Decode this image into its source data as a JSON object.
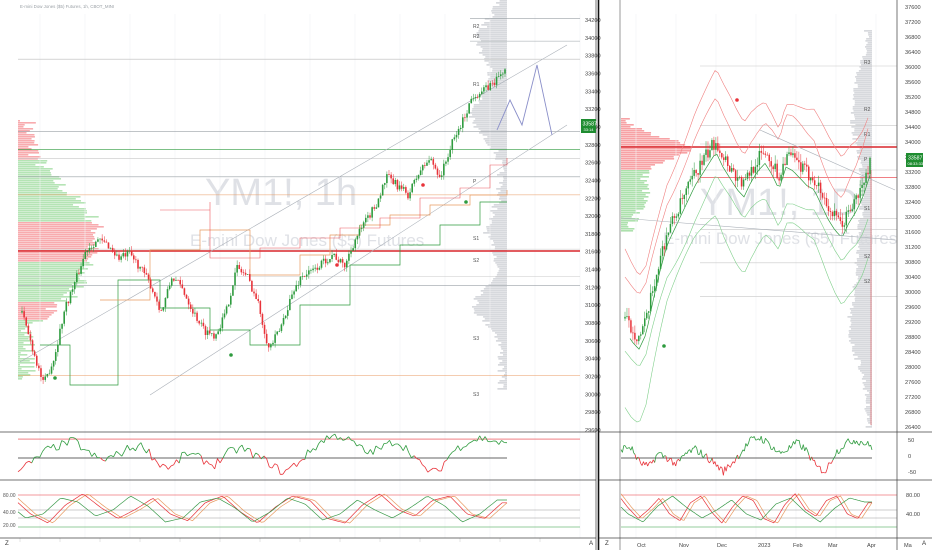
{
  "layout_left": {
    "header": "E-mini Dow Jones ($5) Futures, 1h, CBOT_MINI",
    "watermark": "YM1!, 1h",
    "subtitle": "E-mini Dow Jones ($5) Futures",
    "price_tag": "33587",
    "price_tag_time": "33:14",
    "price_axis": [
      "34200",
      "34000",
      "33800",
      "33600",
      "33400",
      "33200",
      "33000",
      "32800",
      "32600",
      "32400",
      "32200",
      "32000",
      "31800",
      "31600",
      "31400",
      "31200",
      "31000",
      "30800",
      "30600",
      "30400",
      "30200",
      "30000",
      "29800",
      "29600"
    ],
    "level_labels": [
      "R2",
      "R1",
      "P",
      "S1",
      "S2",
      "S3",
      "R3"
    ],
    "corner_z": "Z",
    "corner_a": "A"
  },
  "layout_right": {
    "watermark": "YM1!, 1D",
    "subtitle": "E-mini Dow Jones ($5) Futures",
    "price_tag": "33587",
    "price_tag_time": "08:33:33",
    "price_axis": [
      "37600",
      "37200",
      "36800",
      "36400",
      "36000",
      "35600",
      "35200",
      "34800",
      "34400",
      "34000",
      "33600",
      "33200",
      "32800",
      "32400",
      "32000",
      "31600",
      "31200",
      "30800",
      "30400",
      "30000",
      "29600",
      "29200",
      "28800",
      "28400",
      "28000",
      "27600",
      "27200",
      "26800",
      "26400"
    ],
    "level_labels": [
      "R3",
      "R2",
      "R1",
      "P",
      "S1",
      "S2"
    ],
    "osc1_axis": [
      "50",
      "0",
      "-50"
    ],
    "osc2_axis": [
      "80.00",
      "40.00"
    ],
    "date_axis": [
      "Oct",
      "Nov",
      "Dec",
      "2023",
      "Feb",
      "Mar",
      "Apr",
      "Ma"
    ],
    "corner_z": "Z",
    "corner_a": "A"
  },
  "colors": {
    "up": "#2e9b3e",
    "down": "#e8333a",
    "profile_gray": "#d7d9dd",
    "profile_green": "#5cc45c",
    "profile_red": "#f0454b",
    "poc_line": "#d9262c",
    "tag_green": "#1e8c30"
  },
  "chart_data": [
    {
      "type": "candlestick",
      "panel": "left-1h",
      "title": "",
      "ylim": [
        29600,
        34200
      ],
      "close_series_approx": [
        30900,
        30500,
        30100,
        30400,
        30950,
        31250,
        31600,
        31700,
        31650,
        31500,
        31550,
        31400,
        31200,
        30900,
        31300,
        31150,
        30900,
        30700,
        30650,
        30900,
        31400,
        31300,
        31000,
        30500,
        30700,
        31050,
        31300,
        31350,
        31450,
        31550,
        31400,
        31700,
        31900,
        32100,
        32400,
        32300,
        32200,
        32450,
        32600,
        32400,
        32750,
        33000,
        33300,
        33350,
        33450,
        33587
      ],
      "levels": [
        34150,
        33900,
        33700,
        32900,
        32700,
        32600,
        32400,
        32200,
        31600,
        31300,
        31200,
        30200,
        29500
      ]
    },
    {
      "type": "candlestick",
      "panel": "right-1D",
      "title": "",
      "ylim": [
        26400,
        37600
      ],
      "close_series_approx": [
        29400,
        29100,
        28900,
        29300,
        30200,
        31000,
        31700,
        32100,
        32500,
        32900,
        33300,
        33600,
        33900,
        34200,
        33800,
        33500,
        33200,
        33000,
        33400,
        33700,
        33900,
        33600,
        33200,
        33800,
        33700,
        33500,
        33300,
        33200,
        32800,
        32400,
        32100,
        31900,
        32300,
        32600,
        33000,
        33587
      ],
      "levels": [
        36200,
        34600,
        34100,
        33400,
        33200,
        32100,
        31800,
        30900,
        30000
      ]
    },
    {
      "type": "line",
      "panel": "oscillator-1",
      "series_approx": [
        -20,
        -10,
        15,
        25,
        35,
        10,
        -5,
        5,
        20,
        25,
        -10,
        -20,
        10,
        0,
        -15,
        10,
        20,
        5,
        -10,
        -30,
        -10,
        15,
        40,
        45,
        30,
        10,
        20,
        35,
        15,
        -20,
        -30,
        10,
        30,
        40,
        35,
        25
      ]
    },
    {
      "type": "line",
      "panel": "oscillator-2",
      "series_approx": [
        75,
        40,
        20,
        60,
        85,
        55,
        30,
        50,
        75,
        40,
        25,
        65,
        80,
        45,
        20,
        55,
        80,
        70,
        30,
        20,
        60,
        85,
        50,
        35,
        70,
        80,
        40,
        30,
        65
      ]
    }
  ]
}
